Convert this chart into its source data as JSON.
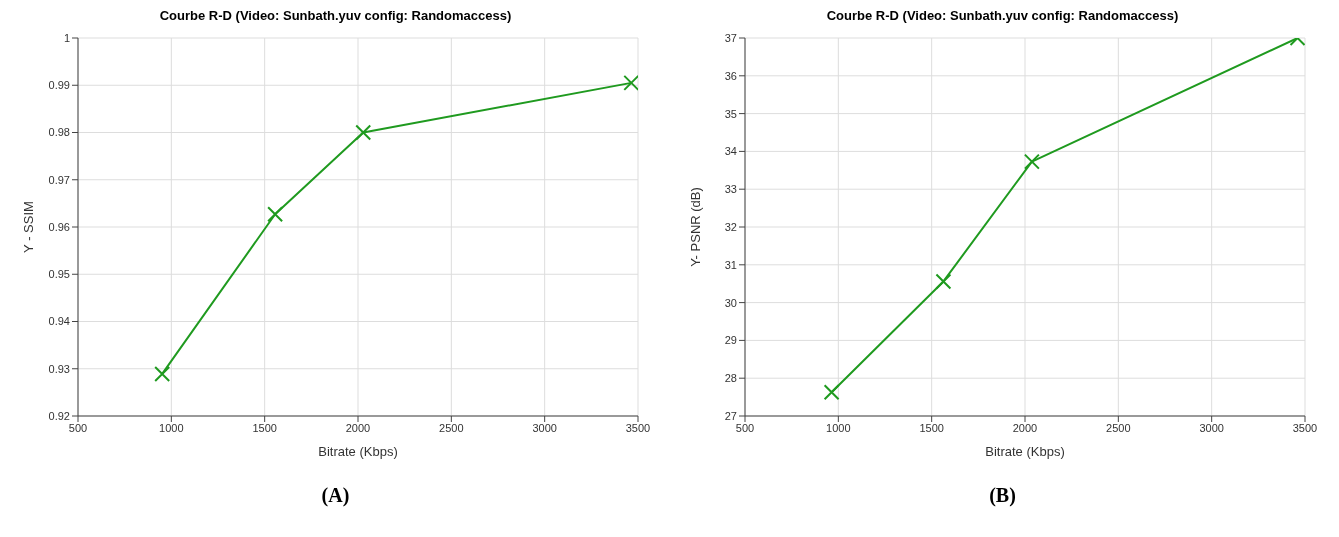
{
  "chart_data": [
    {
      "type": "line",
      "title": "Courbe R-D (Video: Sunbath.yuv config: Randomaccess)",
      "xlabel": "Bitrate (Kbps)",
      "ylabel": "Y - SSIM",
      "x": [
        951,
        1556,
        2028,
        3464
      ],
      "series": [
        {
          "color": "#1f9a1f",
          "values": [
            0.9289,
            0.9627,
            0.98,
            0.9905
          ]
        }
      ],
      "xlim": [
        500,
        3500
      ],
      "xticks": [
        500,
        1000,
        1500,
        2000,
        2500,
        3000,
        3500
      ],
      "ylim": [
        0.92,
        1
      ],
      "yticks": [
        0.92,
        0.93,
        0.94,
        0.95,
        0.96,
        0.97,
        0.98,
        0.99,
        1
      ],
      "grid": true,
      "marker": "cross",
      "line_style": "solid",
      "annotations": [
        "(A)"
      ]
    },
    {
      "type": "line",
      "title": "Courbe R-D (Video: Sunbath.yuv config: Randomaccess)",
      "xlabel": "Bitrate (Kbps)",
      "ylabel": "Y- PSNR (dB)",
      "x": [
        964,
        1563,
        2037,
        3460
      ],
      "series": [
        {
          "color": "#1f9a1f",
          "values": [
            27.63,
            30.56,
            33.73,
            37.0
          ]
        }
      ],
      "xlim": [
        500,
        3500
      ],
      "xticks": [
        500,
        1000,
        1500,
        2000,
        2500,
        3000,
        3500
      ],
      "ylim": [
        27,
        37
      ],
      "yticks": [
        27,
        28,
        29,
        30,
        31,
        32,
        33,
        34,
        35,
        36,
        37
      ],
      "grid": true,
      "marker": "cross",
      "line_style": "solid",
      "annotations": [
        "(B)"
      ]
    }
  ]
}
